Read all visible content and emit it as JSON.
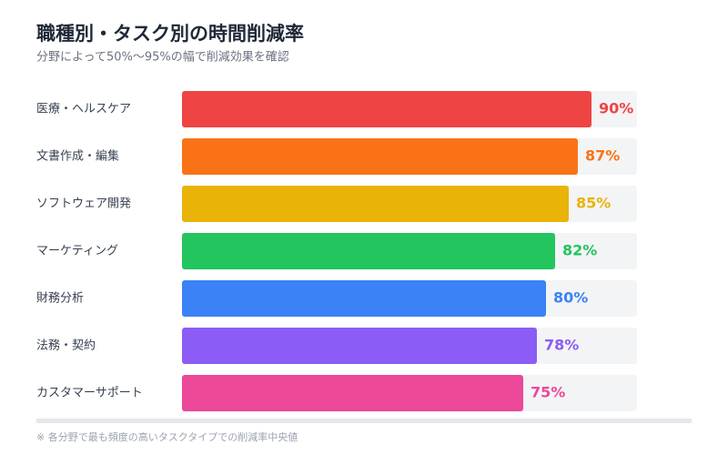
{
  "chart_data": {
    "type": "bar",
    "orientation": "horizontal",
    "title": "職種別・タスク別の時間削減率",
    "subtitle": "分野によって50%〜95%の幅で削減効果を確認",
    "note": "※ 各分野で最も頻度の高いタスクタイプでの削減率中央値",
    "categories": [
      "医療・ヘルスケア",
      "文書作成・編集",
      "ソフトウェア開発",
      "マーケティング",
      "財務分析",
      "法務・契約",
      "カスタマーサポート"
    ],
    "values": [
      90,
      87,
      85,
      82,
      80,
      78,
      75
    ],
    "value_labels": [
      "90%",
      "87%",
      "85%",
      "82%",
      "80%",
      "78%",
      "75%"
    ],
    "colors": [
      "#ef4444",
      "#f97316",
      "#eab308",
      "#22c55e",
      "#3b82f6",
      "#8b5cf6",
      "#ec4899"
    ],
    "xlim": [
      0,
      100
    ]
  }
}
